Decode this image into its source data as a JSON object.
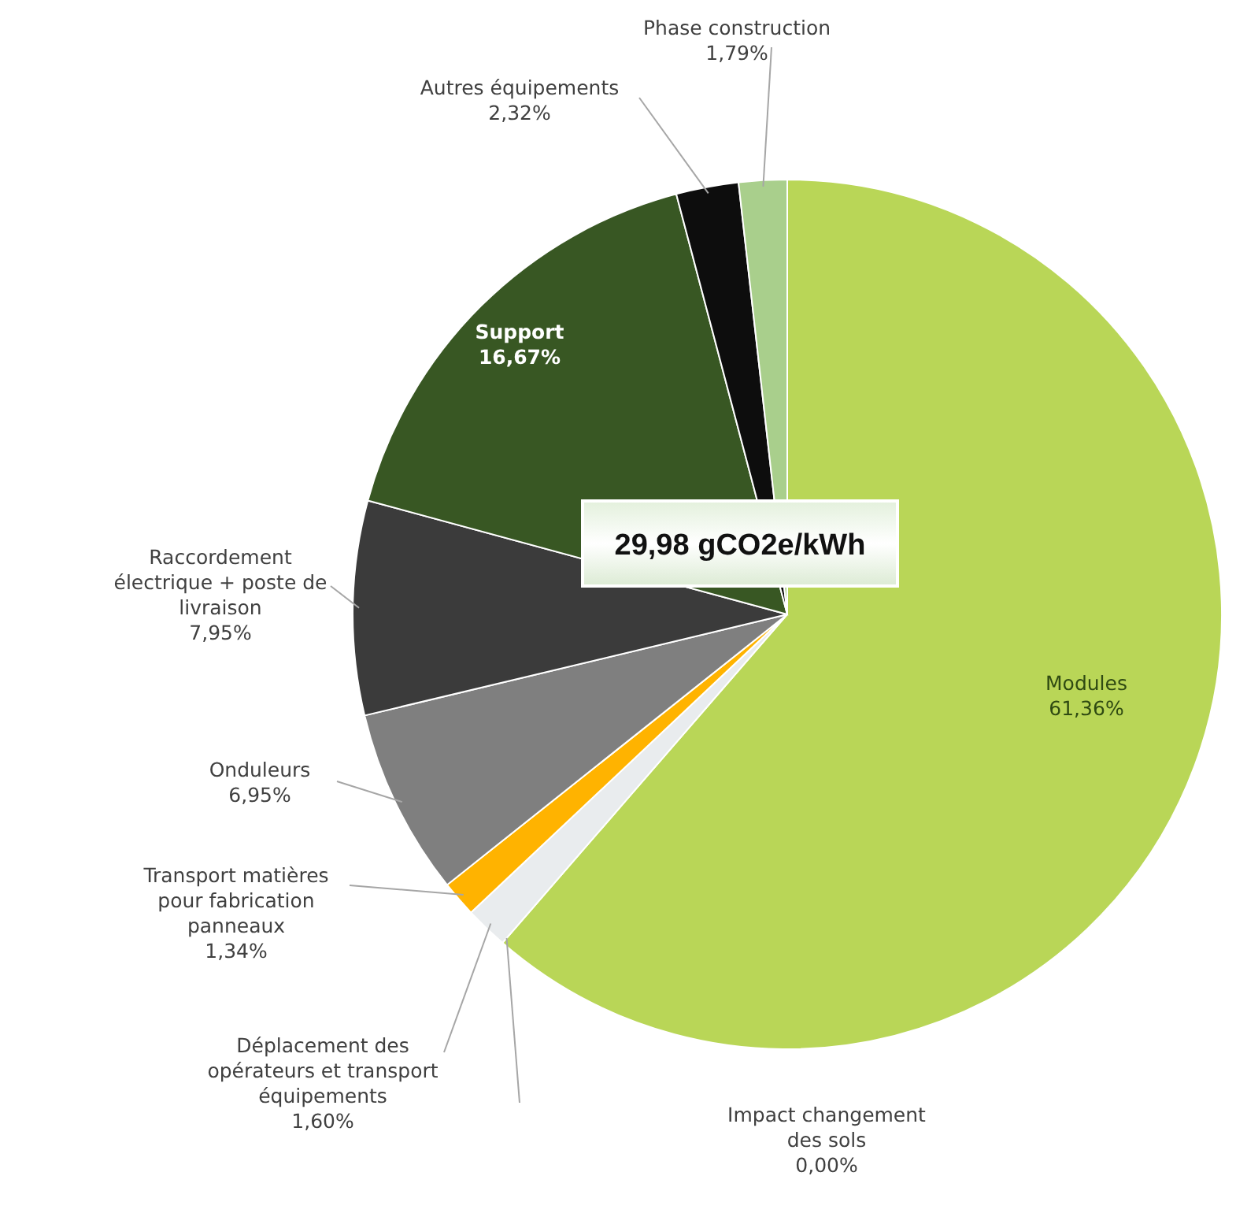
{
  "chart_data": {
    "type": "pie",
    "categories": [
      "Modules",
      "Impact changement des sols",
      "Déplacement des opérateurs et transport équipements",
      "Transport matières pour fabrication panneaux",
      "Onduleurs",
      "Raccordement électrique + poste de livraison",
      "Support",
      "Autres équipements",
      "Phase construction"
    ],
    "values": [
      61.36,
      0,
      1.6,
      1.34,
      6.95,
      7.95,
      16.67,
      2.32,
      1.79
    ],
    "value_labels": [
      "61,36%",
      "0,00%",
      "1,60%",
      "1,34%",
      "6,95%",
      "7,95%",
      "16,67%",
      "2,32%",
      "1,79%"
    ],
    "colors": [
      "#b9d657",
      "#d9d9d9",
      "#e9ecee",
      "#ffb300",
      "#7f7f7f",
      "#3b3b3b",
      "#385723",
      "#0d0d0d",
      "#a9cf8c"
    ],
    "annotations": [
      "29,98 gCO2e/kWh"
    ]
  }
}
